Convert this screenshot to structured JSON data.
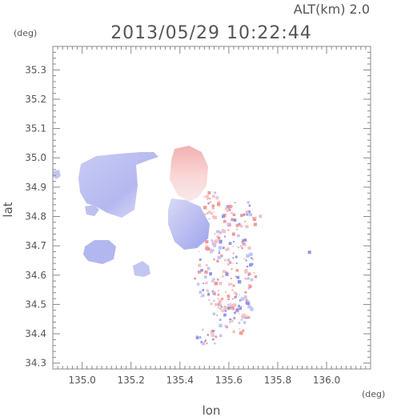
{
  "header": {
    "altitude_label": "ALT(km) 2.0",
    "timestamp": "2013/05/29 10:22:44"
  },
  "axes": {
    "x_unit": "(deg)",
    "y_unit": "(deg)",
    "x_label": "lon",
    "y_label": "lat"
  },
  "chart_data": {
    "type": "heatmap",
    "xlim": [
      134.88,
      136.18
    ],
    "ylim": [
      34.28,
      35.38
    ],
    "x_ticks": [
      "135.0",
      "135.2",
      "135.4",
      "135.6",
      "135.8",
      "136.0"
    ],
    "x_tick_values": [
      135.0,
      135.2,
      135.4,
      135.6,
      135.8,
      136.0
    ],
    "y_ticks": [
      "35.3",
      "35.2",
      "35.1",
      "35.0",
      "34.9",
      "34.8",
      "34.7",
      "34.6",
      "34.5",
      "34.4",
      "34.3"
    ],
    "y_tick_values": [
      35.3,
      35.2,
      35.1,
      35.0,
      34.9,
      34.8,
      34.7,
      34.6,
      34.5,
      34.4,
      34.3
    ],
    "colors": {
      "positive": "#f4a6a6",
      "negative": "#a9aef0",
      "axis": "#888888"
    }
  }
}
